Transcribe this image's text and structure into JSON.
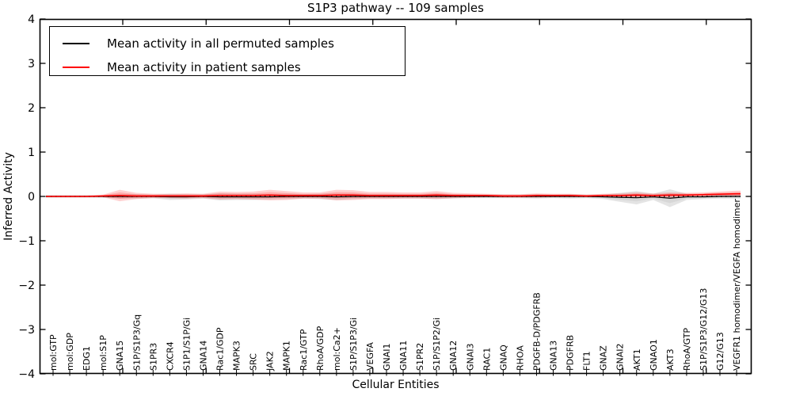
{
  "figure": {
    "title": "S1P3 pathway -- 109 samples",
    "xlabel": "Cellular Entities",
    "ylabel": "Inferred Activity"
  },
  "legend": {
    "entries": [
      {
        "label": "Mean activity in all permuted samples",
        "color": "#000000"
      },
      {
        "label": "Mean activity in patient samples",
        "color": "#ff0000"
      }
    ]
  },
  "chart_data": {
    "type": "line",
    "title": "S1P3 pathway -- 109 samples",
    "xlabel": "Cellular Entities",
    "ylabel": "Inferred Activity",
    "ylim": [
      -4,
      4
    ],
    "yticks": [
      4,
      3,
      2,
      1,
      0,
      -1,
      -2,
      -3,
      -4
    ],
    "grid": false,
    "legend_position": "upper left",
    "zero_line": {
      "style": "dotted",
      "color": "#000000"
    },
    "categories": [
      "mol:GTP",
      "mol:GDP",
      "EDG1",
      "mol:S1P",
      "GNA15",
      "S1P/S1P3/Gq",
      "S1PR3",
      "CXCR4",
      "S1P1/S1P/Gi",
      "GNA14",
      "Rac1/GDP",
      "MAPK3",
      "SRC",
      "JAK2",
      "MAPK1",
      "Rac1/GTP",
      "RhoA/GDP",
      "mol:Ca2+",
      "S1P/S1P3/Gi",
      "VEGFA",
      "GNAI1",
      "GNA11",
      "S1PR2",
      "S1P/S1P2/Gi",
      "GNA12",
      "GNAI3",
      "RAC1",
      "GNAQ",
      "RHOA",
      "PDGFB-D/PDGFRB",
      "GNA13",
      "PDGFRB",
      "FLT1",
      "GNAZ",
      "GNAI2",
      "AKT1",
      "GNAO1",
      "AKT3",
      "RhoA/GTP",
      "S1P/S1P3/G12/G13",
      "G12/G13",
      "VEGFR1 homodimer/VEGFA homodimer"
    ],
    "series": [
      {
        "name": "Mean activity in all permuted samples",
        "color": "#000000",
        "values": [
          0,
          0,
          0,
          0,
          0,
          0,
          0,
          -0.01,
          -0.01,
          0,
          -0.01,
          -0.01,
          -0.01,
          -0.01,
          0,
          0,
          0,
          -0.01,
          0,
          0,
          0,
          0,
          0,
          0,
          0,
          0,
          0,
          0,
          0,
          0,
          0,
          0,
          0,
          -0.01,
          -0.02,
          -0.03,
          -0.01,
          -0.04,
          -0.01,
          -0.01,
          0,
          0
        ]
      },
      {
        "name": "Mean activity in patient samples",
        "color": "#ff0000",
        "values": [
          0,
          0,
          0,
          0.01,
          0.02,
          0.01,
          0.01,
          0.01,
          0.01,
          0.01,
          0.02,
          0.02,
          0.02,
          0.03,
          0.02,
          0.02,
          0.02,
          0.03,
          0.03,
          0.02,
          0.02,
          0.02,
          0.02,
          0.03,
          0.02,
          0.02,
          0.02,
          0.01,
          0.01,
          0.02,
          0.02,
          0.02,
          0.01,
          0.02,
          0.02,
          0.03,
          0.02,
          0.03,
          0.03,
          0.04,
          0.05,
          0.06
        ]
      }
    ],
    "bands": [
      {
        "name": "permuted-sample-range",
        "color": "#c9c9c9",
        "opacity": 0.5,
        "center_series": 0,
        "half_widths": [
          0.03,
          0.03,
          0.03,
          0.03,
          0.05,
          0.05,
          0.04,
          0.07,
          0.06,
          0.05,
          0.08,
          0.07,
          0.07,
          0.06,
          0.06,
          0.05,
          0.06,
          0.07,
          0.06,
          0.05,
          0.05,
          0.05,
          0.05,
          0.06,
          0.05,
          0.04,
          0.04,
          0.04,
          0.04,
          0.05,
          0.04,
          0.05,
          0.04,
          0.05,
          0.1,
          0.15,
          0.07,
          0.2,
          0.07,
          0.05,
          0.05,
          0.05
        ]
      },
      {
        "name": "patient-sample-range",
        "color": "#ff0000",
        "opacity": 0.18,
        "center_series": 1,
        "half_widths": [
          0.02,
          0.02,
          0.02,
          0.03,
          0.13,
          0.07,
          0.05,
          0.05,
          0.06,
          0.05,
          0.09,
          0.08,
          0.09,
          0.12,
          0.1,
          0.07,
          0.07,
          0.12,
          0.11,
          0.08,
          0.08,
          0.07,
          0.07,
          0.09,
          0.06,
          0.05,
          0.04,
          0.04,
          0.04,
          0.05,
          0.04,
          0.04,
          0.03,
          0.04,
          0.05,
          0.06,
          0.05,
          0.06,
          0.05,
          0.05,
          0.06,
          0.07
        ]
      }
    ]
  }
}
